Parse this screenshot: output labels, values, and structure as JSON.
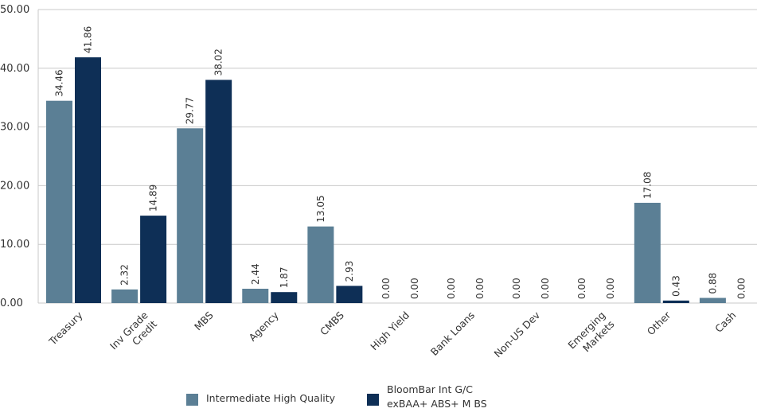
{
  "chart_data": {
    "type": "bar",
    "categories": [
      "Treasury",
      "Inv Grade Credit",
      "MBS",
      "Agency",
      "CMBS",
      "High Yield",
      "Bank Loans",
      "Non-US Dev",
      "Emerging Markets",
      "Other",
      "Cash"
    ],
    "category_lines": [
      [
        "Treasury"
      ],
      [
        "Inv Grade",
        "Credit"
      ],
      [
        "MBS"
      ],
      [
        "Agency"
      ],
      [
        "CMBS"
      ],
      [
        "High Yield"
      ],
      [
        "Bank Loans"
      ],
      [
        "Non-US Dev"
      ],
      [
        "Emerging",
        "Markets"
      ],
      [
        "Other"
      ],
      [
        "Cash"
      ]
    ],
    "series": [
      {
        "name": "Intermediate High Quality",
        "color": "#5b7f95",
        "values": [
          34.46,
          2.32,
          29.77,
          2.44,
          13.05,
          0.0,
          0.0,
          0.0,
          0.0,
          17.08,
          0.88
        ]
      },
      {
        "name": "BloomBar Int G/C exBAA+ABS+MBS",
        "name_display": "BloomBar Int G/C exBAA+ ABS+ M BS",
        "color": "#0e2f56",
        "values": [
          41.86,
          14.89,
          38.02,
          1.87,
          2.93,
          0.0,
          0.0,
          0.0,
          0.0,
          0.43,
          0.0
        ]
      }
    ],
    "ylim": [
      0,
      50
    ],
    "yticks": [
      0,
      10,
      20,
      30,
      40,
      50
    ],
    "ytick_labels": [
      "0.00",
      "10.00",
      "20.00",
      "30.00",
      "40.00",
      "50.00"
    ],
    "grid": true,
    "legend_position": "bottom",
    "title": "",
    "xlabel": "",
    "ylabel": ""
  },
  "legend": {
    "item1": "Intermediate High Quality",
    "item2": "BloomBar Int G/C exBAA+ ABS+ M BS"
  }
}
